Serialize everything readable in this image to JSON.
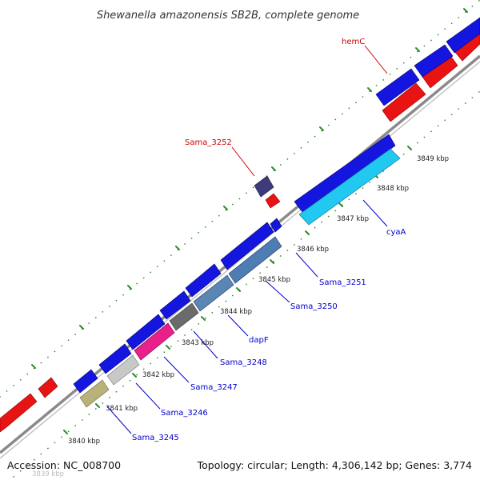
{
  "title": "Shewanella amazonensis SB2B, complete genome",
  "footer": {
    "accession": "Accession: NC_008700",
    "summary": "Topology: circular; Length: 4,306,142 bp; Genes: 3,774"
  },
  "ticks": [
    "3839 kbp",
    "3840 kbp",
    "3841 kbp",
    "3842 kbp",
    "3843 kbp",
    "3844 kbp",
    "3845 kbp",
    "3846 kbp",
    "3847 kbp",
    "3848 kbp",
    "3849 kbp"
  ],
  "gene_labels": {
    "hemC": "hemC",
    "sama3252": "Sama_3252",
    "cyaA": "cyaA",
    "sama3251": "Sama_3251",
    "sama3250": "Sama_3250",
    "dapF": "dapF",
    "sama3248": "Sama_3248",
    "sama3247": "Sama_3247",
    "sama3246": "Sama_3246",
    "sama3245": "Sama_3245"
  },
  "colors": {
    "forward": "#1515e0",
    "reverse": "#e81414",
    "cyaA": "#21c8ef",
    "sama3251": "#4e7db3",
    "sama3250": "#5a86b5",
    "dapF": "#6b6b6b",
    "sama3248": "#e8208c",
    "sama3247": "#c8c8c8",
    "sama3245": "#b8b27a",
    "sama3252": "#3f3a7a",
    "backbone": "#8a8a8a",
    "tick_dots": "#2e8b2e",
    "label_red": "#cc0000",
    "label_blue": "#0000cc"
  }
}
